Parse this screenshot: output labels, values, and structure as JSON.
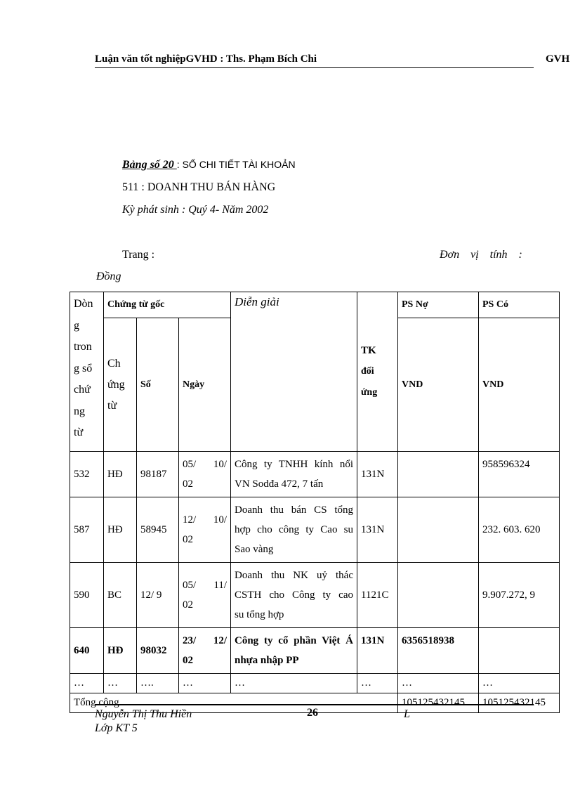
{
  "header": {
    "left": "Luận văn tốt nghiệpGVHD : Ths. Phạm Bích Chi",
    "right": "GVH"
  },
  "title": {
    "table_no": "Bảng số 20 ",
    "title_rest": ": SỔ CHI TIẾT TÀI KHOẢN",
    "account": "511 : DOANH THU BÁN HÀNG",
    "period": "Kỳ phát sinh : Quý 4- Năm 2002",
    "page_label": "Trang :",
    "unit_label": "Đơn    vị    tính    :",
    "unit_value": "Đồng"
  },
  "table": {
    "headers": {
      "line_no": [
        "Dòn",
        "g",
        "tron",
        "g sổ",
        "chứ",
        "ng",
        "từ"
      ],
      "source_doc": "Chứng từ gốc",
      "doc_type": [
        "Ch",
        "ứng",
        "từ"
      ],
      "doc_no": "Số",
      "date": "Ngày",
      "description": "Diễn giải",
      "contra": [
        "TK",
        "đối",
        "ứng"
      ],
      "debit": "PS Nợ",
      "credit": "PS Có",
      "debit_unit": "VND",
      "credit_unit": "VND"
    },
    "rows": [
      {
        "line": "532",
        "type": "HĐ",
        "no": "98187",
        "date": [
          "05/ 10/",
          "02"
        ],
        "desc": [
          "Công ty TNHH kính nổi",
          "VN Sodđa 472, 7 tấn"
        ],
        "contra": "131N",
        "debit": "",
        "credit": "958596324"
      },
      {
        "line": "587",
        "type": "HĐ",
        "no": "58945",
        "date": [
          "12/ 10/",
          "02"
        ],
        "desc": [
          "Doanh thu bán CS tổng",
          "hợp cho công ty Cao su",
          "Sao vàng"
        ],
        "contra": "131N",
        "debit": "",
        "credit": "232. 603. 620"
      },
      {
        "line": "590",
        "type": "BC",
        "no": "12/ 9",
        "date": [
          "05/ 11/",
          "02"
        ],
        "desc": [
          "Doanh thu NK uỷ thác",
          "CSTH cho Công ty cao",
          "su tổng hợp"
        ],
        "contra": "1121C",
        "debit": "",
        "credit": "9.907.272, 9"
      },
      {
        "line": "640",
        "type": "HĐ",
        "no": "98032",
        "date": [
          "23/ 12/",
          "02"
        ],
        "desc": [
          "Công ty cổ phần Việt Á",
          "nhựa nhập PP"
        ],
        "contra": "131N",
        "debit": "6356518938",
        "credit": ""
      }
    ],
    "ellipsis": [
      "…",
      "…",
      "….",
      "…",
      "…",
      "…",
      "…",
      "…"
    ],
    "total": {
      "label": "Tổng cộng",
      "debit": "105125432145",
      "credit": "105125432145"
    }
  },
  "footer": {
    "author": "Nguyễn Thị Thu Hiền",
    "class": "Lớp KT 5",
    "page": "26",
    "right": "L"
  }
}
